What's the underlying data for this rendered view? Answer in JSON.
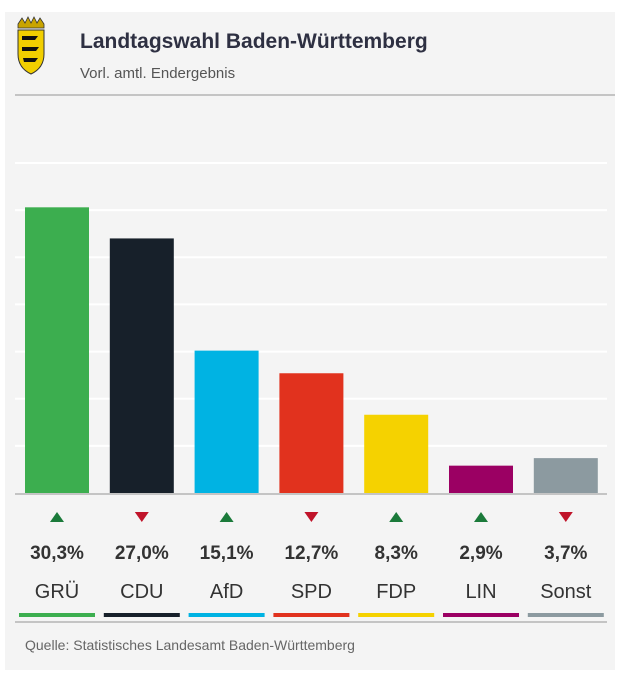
{
  "header": {
    "title": "Landtagswahl Baden-Württemberg",
    "subtitle": "Vorl. amtl. Endergebnis",
    "logo": "Baden-Württemberg coat of arms"
  },
  "chart_data": {
    "type": "bar",
    "categories": [
      "GRÜ",
      "CDU",
      "AfD",
      "SPD",
      "FDP",
      "LIN",
      "Sonst"
    ],
    "values": [
      30.3,
      27.0,
      15.1,
      12.7,
      8.3,
      2.9,
      3.7
    ],
    "value_labels": [
      "30,3%",
      "27,0%",
      "15,1%",
      "12,7%",
      "8,3%",
      "2,9%",
      "3,7%"
    ],
    "trend": [
      "up",
      "down",
      "up",
      "down",
      "up",
      "up",
      "down"
    ],
    "colors": [
      "#3cae4f",
      "#17202a",
      "#00b3e3",
      "#e1321e",
      "#f5d200",
      "#9b0063",
      "#8c9aa0"
    ],
    "trend_colors": {
      "up": "#1b7a3a",
      "down": "#c0142a"
    },
    "ylim": [
      0,
      35
    ],
    "grid": true,
    "title": "",
    "xlabel": "",
    "ylabel": ""
  },
  "footer": {
    "source": "Quelle: Statistisches Landesamt Baden-Württemberg"
  }
}
